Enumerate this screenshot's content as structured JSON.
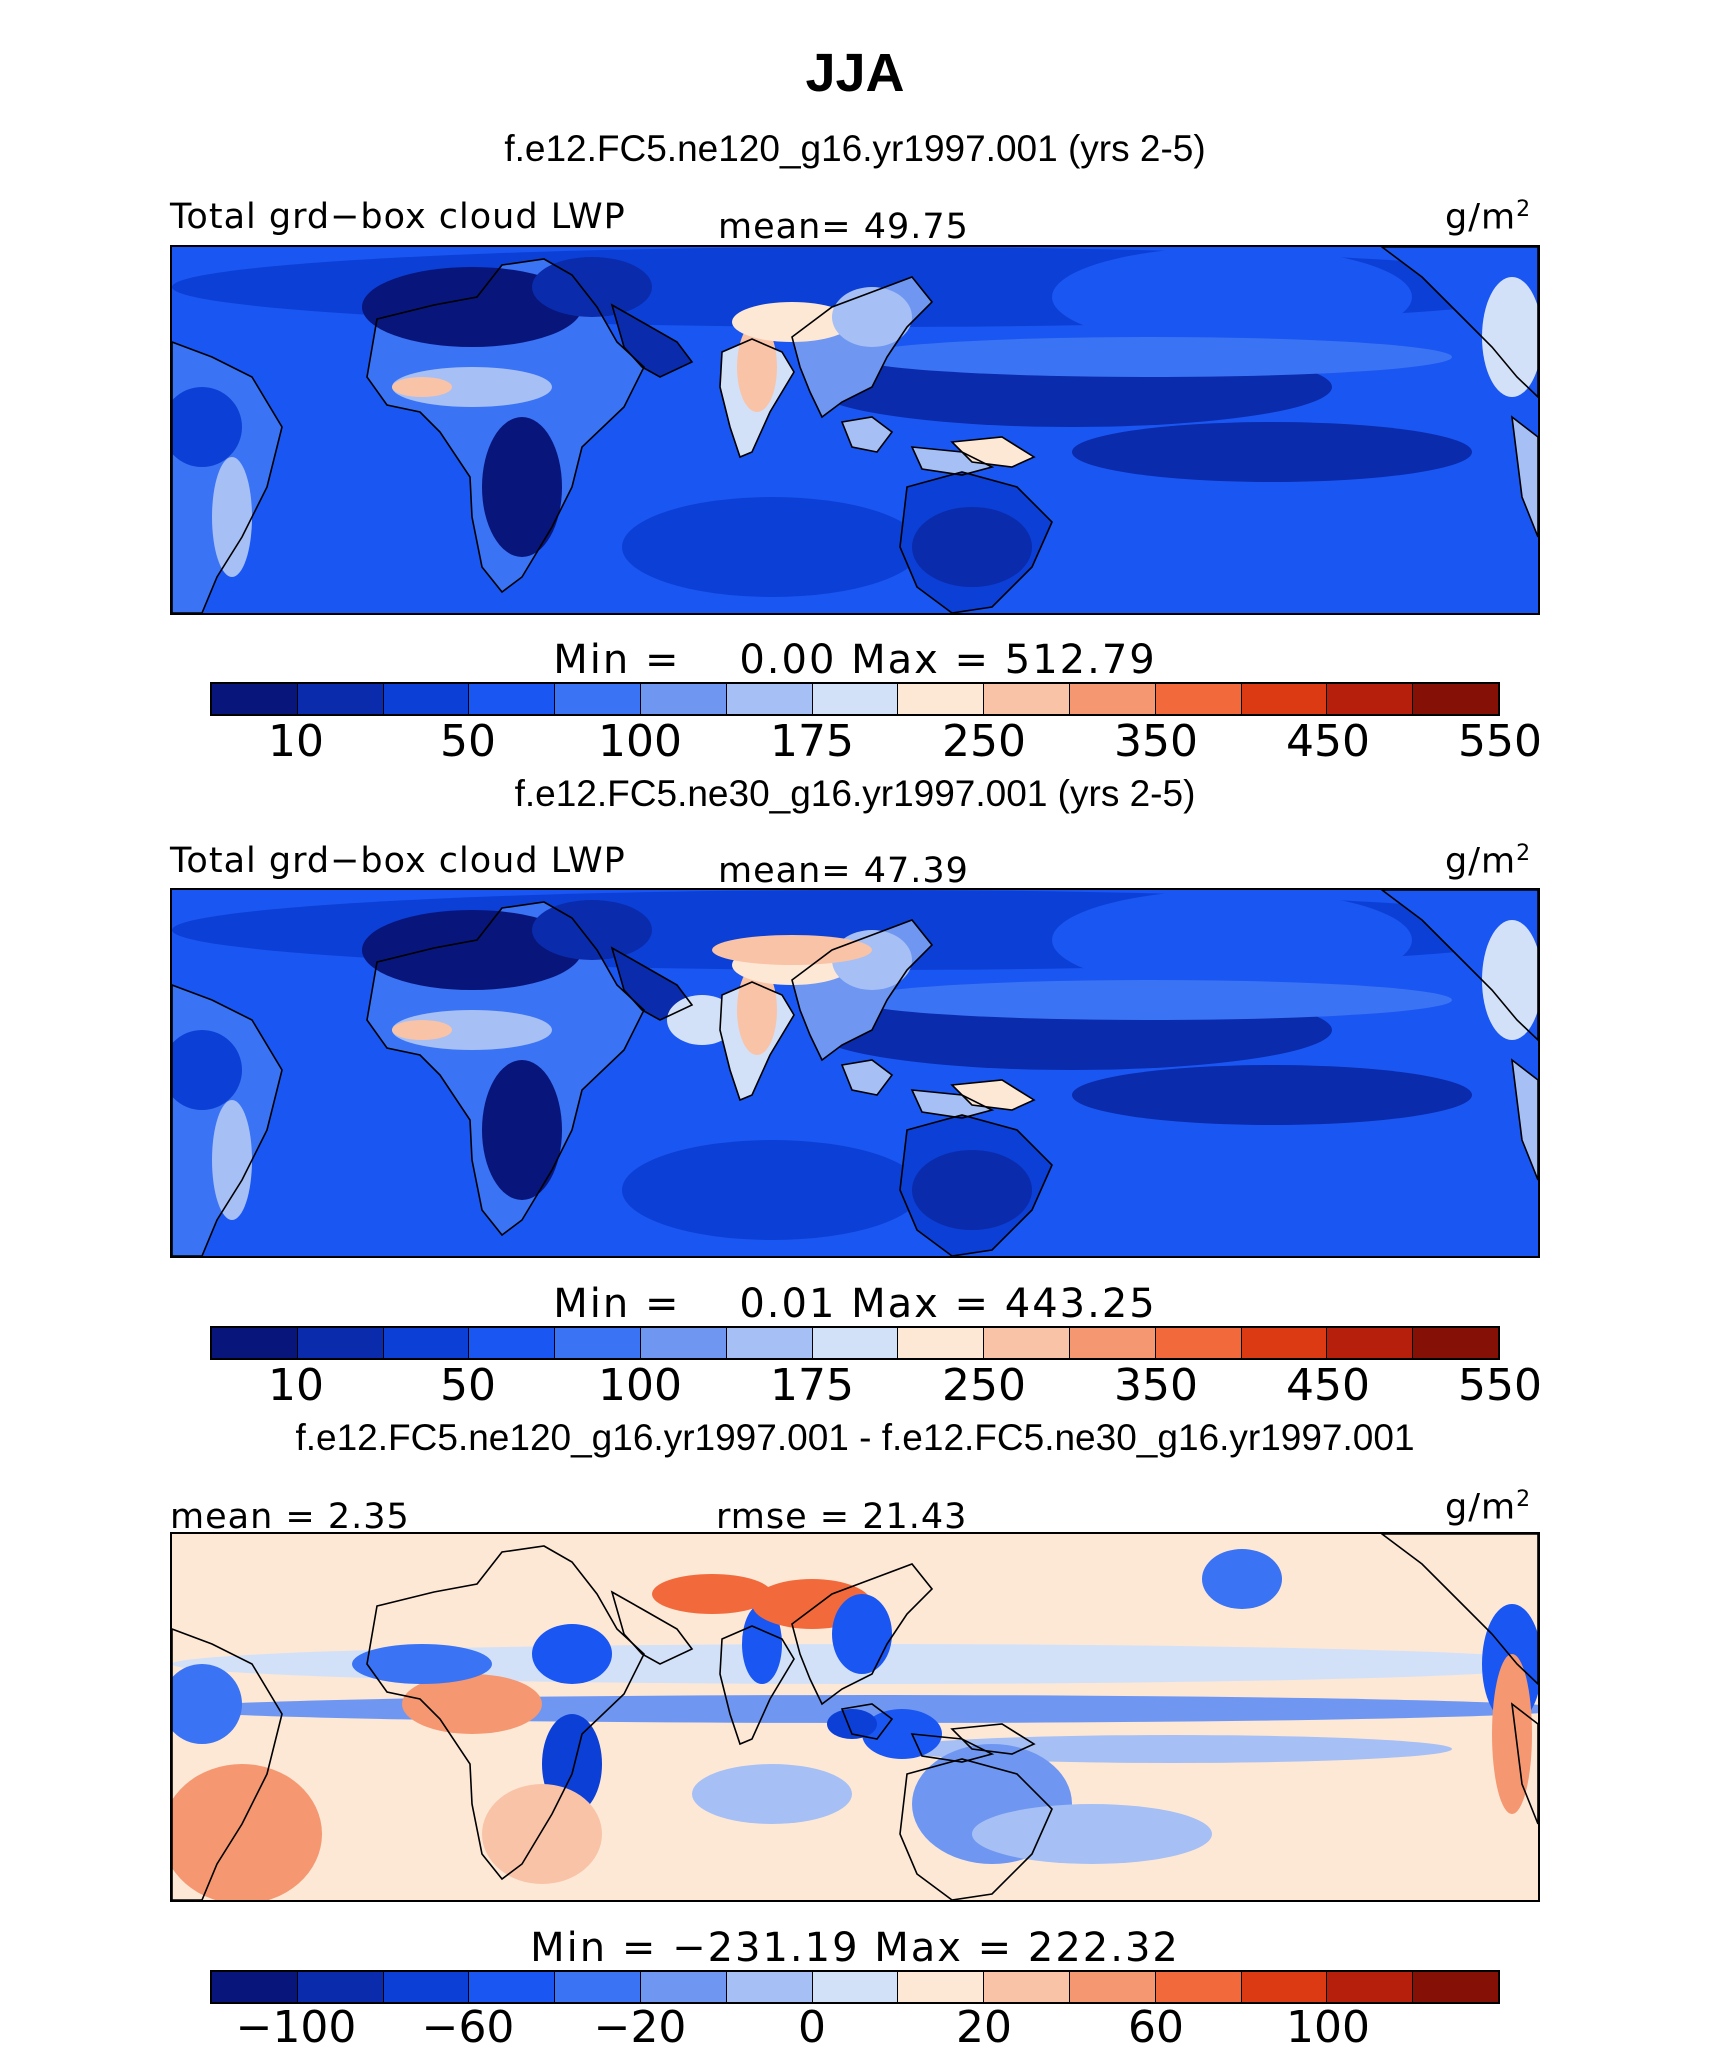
{
  "title": "JJA",
  "palette_seq": [
    "#08157a",
    "#0a2bab",
    "#0c3fd6",
    "#1a56f2",
    "#3a73f3",
    "#6f97f2",
    "#a6bff4",
    "#d3e1f8",
    "#fde8d6",
    "#f9c3a8",
    "#f59770",
    "#f26a3c",
    "#dc3a12",
    "#b51f0c",
    "#841006"
  ],
  "palette_div": [
    "#08157a",
    "#0a2bab",
    "#0c3fd6",
    "#1a56f2",
    "#3a73f3",
    "#6f97f2",
    "#a6bff4",
    "#d3e1f8",
    "#fde8d6",
    "#f9c3a8",
    "#f59770",
    "#f26a3c",
    "#dc3a12",
    "#b51f0c",
    "#841006"
  ],
  "panels": [
    {
      "case": "f.e12.FC5.ne120_g16.yr1997.001 (yrs 2-5)",
      "left_label": "Total grd−box cloud LWP",
      "center_label": "mean=  49.75",
      "units": "g/m",
      "units_sup": "2",
      "min_max": "Min =    0.00 Max = 512.79",
      "tick_labels": [
        "10",
        "50",
        "100",
        "175",
        "250",
        "350",
        "450",
        "550"
      ],
      "field": "lwp_hi"
    },
    {
      "case": "f.e12.FC5.ne30_g16.yr1997.001 (yrs 2-5)",
      "left_label": "Total grd−box cloud LWP",
      "center_label": "mean=  47.39",
      "units": "g/m",
      "units_sup": "2",
      "min_max": "Min =    0.01 Max = 443.25",
      "tick_labels": [
        "10",
        "50",
        "100",
        "175",
        "250",
        "350",
        "450",
        "550"
      ],
      "field": "lwp_lo"
    },
    {
      "case": "f.e12.FC5.ne120_g16.yr1997.001 - f.e12.FC5.ne30_g16.yr1997.001",
      "left_label": "mean =   2.35",
      "center_label": "rmse =  21.43",
      "units": "g/m",
      "units_sup": "2",
      "min_max": "Min = −231.19 Max = 222.32",
      "tick_labels": [
        "−100",
        "−60",
        "−20",
        "0",
        "20",
        "60",
        "100"
      ],
      "field": "diff"
    }
  ]
}
